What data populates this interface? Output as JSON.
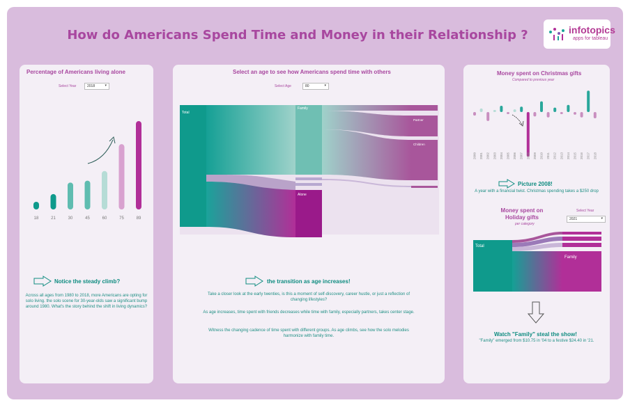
{
  "header": {
    "title": "How do Americans Spend Time and Money in their Relationship ?"
  },
  "logo": {
    "name": "infotopics",
    "tagline": "apps for tableau"
  },
  "alone_panel": {
    "title": "Percentage of Americans living alone",
    "select_label": "Select Year",
    "select_value": "2018",
    "heading": "Notice the steady climb?",
    "body": "Across all ages from 1980 to 2018, more Americans are opting for solo living. the solo scene for 30-year-olds saw a significant bump around 1980. What's the story behind the shift in living dynamics?",
    "colors": {
      "teal": "#0f9a8c",
      "light": "#b6dcd6",
      "pink": "#b12f98"
    }
  },
  "time_panel": {
    "title": "Select an age to see how Americans spend time with others",
    "select_label": "Select Age",
    "select_value": "80",
    "node_labels": {
      "total": "Total",
      "family": "Family",
      "alone": "Alone",
      "partner": "Partner",
      "children": "Children"
    },
    "heading": "the transition as age increases!",
    "para1": "Take a closer look at the early twenties, is this a moment of self-discovery, career hustle, or just a reflection of changing lifestyles?",
    "para2": "As age increases, time spent with friends decreases while time with family, especially partners, takes center stage.",
    "para3": "Witness the changing cadence of time spent with different groups. As age climbs, see how the solo melodies harmonize with family time."
  },
  "money_panel": {
    "title": "Money spent on Christmas gifts",
    "subtitle": "Compared to previous year",
    "callout_heading": "Picture 2008!",
    "callout_body": "A year with a financial twist. Christmas spending takes a $250 drop",
    "holiday_title": "Money spent on Holiday gifts",
    "holiday_subtitle": "per category",
    "select_label": "Select Year",
    "select_value": "2021",
    "node_labels": {
      "total": "Total",
      "family": "Family"
    },
    "heading": "Watch \"Family\" steal the show!",
    "body": "\"Family\" emerged from $10.75 in '04 to a festive $24.40 in '21."
  },
  "chart_data": [
    {
      "type": "bar",
      "title": "Percentage of Americans living alone",
      "categories": [
        "18",
        "21",
        "30",
        "45",
        "60",
        "75",
        "89"
      ],
      "values": [
        2,
        4,
        7,
        7.5,
        10,
        17,
        23
      ],
      "ylim": [
        0,
        25
      ],
      "grid": false
    },
    {
      "type": "bar",
      "title": "Money spent on Christmas gifts",
      "subtitle": "Compared to previous year",
      "categories": [
        "2000",
        "2001",
        "2002",
        "2003",
        "2004",
        "2005",
        "2006",
        "2007",
        "2008",
        "2009",
        "2010",
        "2011",
        "2012",
        "2013",
        "2014",
        "2015",
        "2016",
        "2017",
        "2018"
      ],
      "values": [
        -20,
        20,
        -50,
        10,
        35,
        -10,
        15,
        30,
        -250,
        -25,
        60,
        -30,
        25,
        -10,
        40,
        -15,
        -30,
        120,
        -35
      ],
      "ylim": [
        -260,
        130
      ],
      "grid": false
    }
  ]
}
